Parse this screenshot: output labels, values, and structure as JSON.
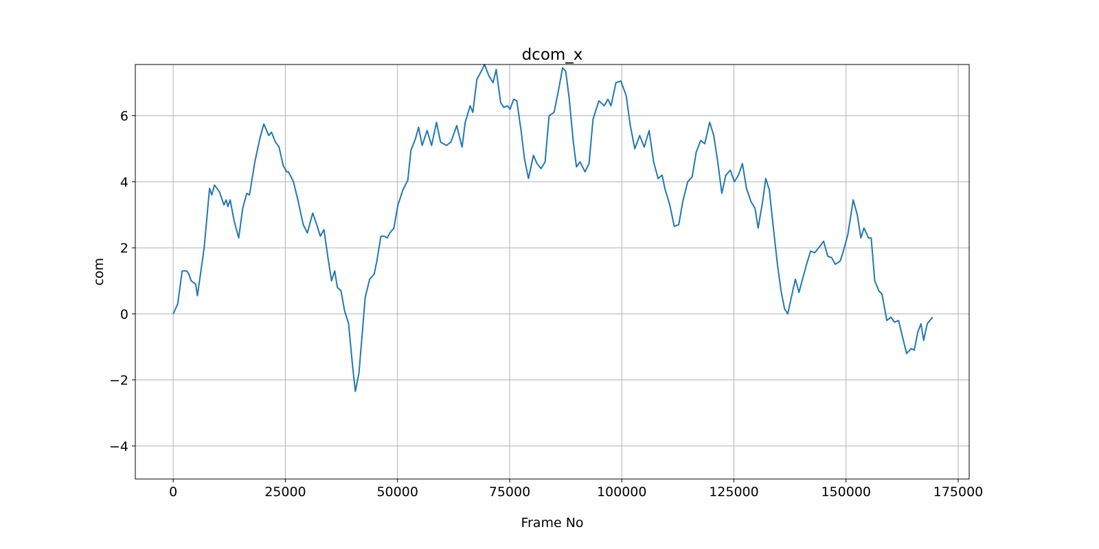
{
  "chart_data": {
    "type": "line",
    "title": "dcom_x",
    "xlabel": "Frame No",
    "ylabel": "com",
    "x": [
      0,
      1000,
      2000,
      3000,
      3500,
      4000,
      5000,
      5400,
      6900,
      8100,
      8600,
      9200,
      10300,
      11300,
      11800,
      12200,
      12700,
      13600,
      14600,
      15500,
      16400,
      17000,
      18200,
      19300,
      20200,
      21300,
      21900,
      22800,
      23600,
      24500,
      25300,
      25700,
      26800,
      27700,
      29000,
      29900,
      31100,
      32000,
      32800,
      33600,
      34500,
      35300,
      36000,
      36600,
      37400,
      38200,
      39100,
      40000,
      40600,
      41400,
      42200,
      42800,
      43800,
      44800,
      45400,
      46300,
      47100,
      47700,
      48300,
      49200,
      50100,
      51200,
      52300,
      53000,
      54000,
      54700,
      55500,
      56600,
      57600,
      58700,
      59600,
      60900,
      61900,
      63200,
      64400,
      65100,
      66200,
      66800,
      67700,
      68700,
      69400,
      70400,
      71300,
      72000,
      73000,
      73700,
      74500,
      75100,
      75900,
      76600,
      77600,
      78300,
      79200,
      80300,
      81100,
      82000,
      82900,
      83800,
      84900,
      85800,
      86800,
      87500,
      88300,
      89200,
      89900,
      90700,
      91800,
      92700,
      93600,
      94900,
      96100,
      96900,
      97600,
      98700,
      99800,
      101000,
      101900,
      102900,
      104000,
      105000,
      106100,
      107100,
      108100,
      109000,
      109600,
      110700,
      111700,
      112700,
      113600,
      114700,
      115700,
      116600,
      117600,
      118500,
      119600,
      120500,
      121400,
      122300,
      123200,
      124200,
      125100,
      126000,
      126900,
      127800,
      128800,
      129700,
      130400,
      131400,
      132100,
      132900,
      133800,
      134700,
      135500,
      136300,
      137000,
      137800,
      138700,
      139500,
      140400,
      141200,
      142100,
      143000,
      143900,
      145000,
      145900,
      146800,
      147600,
      148700,
      149400,
      150400,
      151600,
      152500,
      153300,
      154000,
      155000,
      155600,
      156400,
      157300,
      158000,
      159100,
      160000,
      160800,
      161700,
      162600,
      163500,
      164500,
      165200,
      166000,
      166700,
      167300,
      168100,
      169300
    ],
    "series": [
      {
        "name": "dcom_x",
        "color": "#1f77b4",
        "values": [
          0,
          0.3,
          1.3,
          1.3,
          1.2,
          1.0,
          0.9,
          0.55,
          2.0,
          3.8,
          3.6,
          3.9,
          3.7,
          3.3,
          3.45,
          3.25,
          3.45,
          2.8,
          2.3,
          3.2,
          3.65,
          3.6,
          4.6,
          5.3,
          5.75,
          5.4,
          5.5,
          5.2,
          5.05,
          4.5,
          4.3,
          4.3,
          4.0,
          3.5,
          2.7,
          2.45,
          3.05,
          2.7,
          2.35,
          2.55,
          1.7,
          1.0,
          1.3,
          0.8,
          0.7,
          0.1,
          -0.3,
          -1.6,
          -2.35,
          -1.8,
          -0.5,
          0.5,
          1.05,
          1.2,
          1.6,
          2.35,
          2.35,
          2.3,
          2.45,
          2.6,
          3.3,
          3.75,
          4.05,
          4.95,
          5.3,
          5.65,
          5.1,
          5.55,
          5.1,
          5.8,
          5.2,
          5.1,
          5.2,
          5.7,
          5.05,
          5.8,
          6.3,
          6.1,
          7.1,
          7.35,
          7.55,
          7.2,
          7.0,
          7.4,
          6.4,
          6.25,
          6.3,
          6.2,
          6.5,
          6.45,
          5.5,
          4.7,
          4.1,
          4.8,
          4.55,
          4.4,
          4.6,
          6.0,
          6.1,
          6.7,
          7.45,
          7.35,
          6.5,
          5.2,
          4.45,
          4.6,
          4.3,
          4.55,
          5.9,
          6.45,
          6.3,
          6.5,
          6.3,
          7.0,
          7.05,
          6.6,
          5.7,
          5.0,
          5.4,
          5.05,
          5.55,
          4.6,
          4.1,
          4.2,
          3.8,
          3.3,
          2.65,
          2.7,
          3.4,
          4.0,
          4.15,
          4.9,
          5.25,
          5.15,
          5.8,
          5.4,
          4.6,
          3.65,
          4.2,
          4.35,
          4.0,
          4.2,
          4.55,
          3.8,
          3.4,
          3.2,
          2.6,
          3.4,
          4.1,
          3.75,
          2.6,
          1.5,
          0.7,
          0.15,
          0.0,
          0.5,
          1.05,
          0.65,
          1.1,
          1.5,
          1.9,
          1.85,
          2.0,
          2.2,
          1.75,
          1.7,
          1.5,
          1.6,
          1.9,
          2.4,
          3.45,
          3.0,
          2.3,
          2.6,
          2.3,
          2.3,
          1.0,
          0.7,
          0.6,
          -0.2,
          -0.1,
          -0.25,
          -0.2,
          -0.7,
          -1.2,
          -1.05,
          -1.1,
          -0.55,
          -0.3,
          -0.8,
          -0.3,
          -0.1
        ]
      }
    ],
    "xlim": [
      -8450,
      177450
    ],
    "ylim": [
      -5,
      7.55
    ],
    "xticks": [
      0,
      25000,
      50000,
      75000,
      100000,
      125000,
      150000,
      175000
    ],
    "yticks": [
      {
        "value": -4,
        "label": "−4"
      },
      {
        "value": -2,
        "label": "−2"
      },
      0,
      2,
      4,
      6
    ],
    "grid": true
  }
}
